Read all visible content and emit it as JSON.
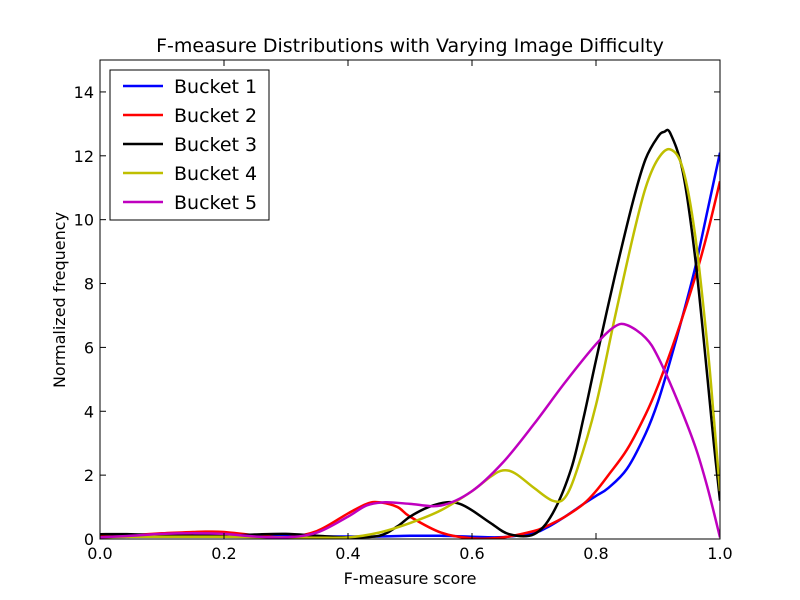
{
  "chart_data": {
    "type": "line",
    "title": "F-measure Distributions with Varying Image Difficulty",
    "xlabel": "F-measure score",
    "ylabel": "Normalized frequency",
    "xlim": [
      0.0,
      1.0
    ],
    "ylim": [
      0,
      15
    ],
    "xticks": [
      0.0,
      0.2,
      0.4,
      0.6,
      0.8,
      1.0
    ],
    "xtick_labels": [
      "0.0",
      "0.2",
      "0.4",
      "0.6",
      "0.8",
      "1.0"
    ],
    "yticks": [
      0,
      2,
      4,
      6,
      8,
      10,
      12,
      14
    ],
    "ytick_labels": [
      "0",
      "2",
      "4",
      "6",
      "8",
      "10",
      "12",
      "14"
    ],
    "grid": false,
    "legend_position": "top-left",
    "series": [
      {
        "name": "Bucket 1",
        "color": "#0000ff",
        "points": [
          [
            0.0,
            0.1
          ],
          [
            0.05,
            0.12
          ],
          [
            0.1,
            0.12
          ],
          [
            0.15,
            0.12
          ],
          [
            0.2,
            0.11
          ],
          [
            0.25,
            0.1
          ],
          [
            0.3,
            0.09
          ],
          [
            0.35,
            0.08
          ],
          [
            0.4,
            0.08
          ],
          [
            0.45,
            0.08
          ],
          [
            0.5,
            0.1
          ],
          [
            0.55,
            0.1
          ],
          [
            0.6,
            0.07
          ],
          [
            0.65,
            0.06
          ],
          [
            0.7,
            0.2
          ],
          [
            0.72,
            0.35
          ],
          [
            0.75,
            0.7
          ],
          [
            0.78,
            1.1
          ],
          [
            0.8,
            1.35
          ],
          [
            0.82,
            1.6
          ],
          [
            0.85,
            2.2
          ],
          [
            0.88,
            3.3
          ],
          [
            0.9,
            4.3
          ],
          [
            0.92,
            5.6
          ],
          [
            0.94,
            7.0
          ],
          [
            0.96,
            8.5
          ],
          [
            0.98,
            10.3
          ],
          [
            1.0,
            12.1
          ]
        ]
      },
      {
        "name": "Bucket 2",
        "color": "#ff0000",
        "points": [
          [
            0.0,
            0.1
          ],
          [
            0.05,
            0.12
          ],
          [
            0.1,
            0.18
          ],
          [
            0.15,
            0.22
          ],
          [
            0.17,
            0.23
          ],
          [
            0.2,
            0.22
          ],
          [
            0.25,
            0.12
          ],
          [
            0.3,
            0.05
          ],
          [
            0.35,
            0.25
          ],
          [
            0.4,
            0.8
          ],
          [
            0.43,
            1.1
          ],
          [
            0.45,
            1.15
          ],
          [
            0.48,
            1.0
          ],
          [
            0.5,
            0.7
          ],
          [
            0.55,
            0.2
          ],
          [
            0.6,
            0.02
          ],
          [
            0.65,
            0.05
          ],
          [
            0.7,
            0.25
          ],
          [
            0.72,
            0.4
          ],
          [
            0.75,
            0.7
          ],
          [
            0.78,
            1.1
          ],
          [
            0.8,
            1.5
          ],
          [
            0.82,
            2.0
          ],
          [
            0.85,
            2.8
          ],
          [
            0.88,
            3.9
          ],
          [
            0.9,
            4.8
          ],
          [
            0.93,
            6.4
          ],
          [
            0.96,
            8.2
          ],
          [
            0.98,
            9.6
          ],
          [
            1.0,
            11.2
          ]
        ]
      },
      {
        "name": "Bucket 3",
        "color": "#000000",
        "points": [
          [
            0.0,
            0.15
          ],
          [
            0.05,
            0.15
          ],
          [
            0.1,
            0.12
          ],
          [
            0.15,
            0.1
          ],
          [
            0.2,
            0.1
          ],
          [
            0.25,
            0.14
          ],
          [
            0.3,
            0.16
          ],
          [
            0.35,
            0.1
          ],
          [
            0.4,
            0.05
          ],
          [
            0.45,
            0.1
          ],
          [
            0.48,
            0.4
          ],
          [
            0.5,
            0.7
          ],
          [
            0.53,
            1.0
          ],
          [
            0.56,
            1.15
          ],
          [
            0.58,
            1.1
          ],
          [
            0.6,
            0.9
          ],
          [
            0.63,
            0.5
          ],
          [
            0.66,
            0.15
          ],
          [
            0.7,
            0.15
          ],
          [
            0.73,
            0.8
          ],
          [
            0.76,
            2.2
          ],
          [
            0.78,
            3.8
          ],
          [
            0.8,
            5.6
          ],
          [
            0.83,
            8.2
          ],
          [
            0.86,
            10.6
          ],
          [
            0.88,
            11.9
          ],
          [
            0.9,
            12.6
          ],
          [
            0.91,
            12.75
          ],
          [
            0.92,
            12.7
          ],
          [
            0.94,
            11.5
          ],
          [
            0.96,
            8.8
          ],
          [
            0.98,
            5.0
          ],
          [
            0.99,
            3.0
          ],
          [
            1.0,
            1.2
          ]
        ]
      },
      {
        "name": "Bucket 4",
        "color": "#bfbf00",
        "points": [
          [
            0.0,
            0.05
          ],
          [
            0.05,
            0.07
          ],
          [
            0.1,
            0.07
          ],
          [
            0.15,
            0.07
          ],
          [
            0.2,
            0.07
          ],
          [
            0.25,
            0.06
          ],
          [
            0.3,
            0.05
          ],
          [
            0.35,
            0.04
          ],
          [
            0.4,
            0.05
          ],
          [
            0.45,
            0.2
          ],
          [
            0.5,
            0.5
          ],
          [
            0.55,
            0.9
          ],
          [
            0.6,
            1.5
          ],
          [
            0.63,
            1.95
          ],
          [
            0.65,
            2.15
          ],
          [
            0.67,
            2.05
          ],
          [
            0.7,
            1.6
          ],
          [
            0.73,
            1.2
          ],
          [
            0.75,
            1.3
          ],
          [
            0.77,
            2.2
          ],
          [
            0.8,
            4.2
          ],
          [
            0.83,
            6.9
          ],
          [
            0.86,
            9.5
          ],
          [
            0.88,
            11.0
          ],
          [
            0.9,
            11.9
          ],
          [
            0.92,
            12.2
          ],
          [
            0.94,
            11.6
          ],
          [
            0.96,
            9.5
          ],
          [
            0.98,
            6.0
          ],
          [
            0.99,
            3.8
          ],
          [
            1.0,
            1.5
          ]
        ]
      },
      {
        "name": "Bucket 5",
        "color": "#bf00bf",
        "points": [
          [
            0.0,
            0.05
          ],
          [
            0.05,
            0.1
          ],
          [
            0.1,
            0.16
          ],
          [
            0.15,
            0.18
          ],
          [
            0.2,
            0.16
          ],
          [
            0.25,
            0.08
          ],
          [
            0.3,
            0.05
          ],
          [
            0.35,
            0.2
          ],
          [
            0.4,
            0.7
          ],
          [
            0.43,
            1.05
          ],
          [
            0.46,
            1.15
          ],
          [
            0.5,
            1.1
          ],
          [
            0.55,
            1.05
          ],
          [
            0.6,
            1.5
          ],
          [
            0.65,
            2.4
          ],
          [
            0.7,
            3.6
          ],
          [
            0.75,
            4.9
          ],
          [
            0.8,
            6.1
          ],
          [
            0.83,
            6.65
          ],
          [
            0.85,
            6.7
          ],
          [
            0.88,
            6.3
          ],
          [
            0.9,
            5.7
          ],
          [
            0.93,
            4.4
          ],
          [
            0.96,
            2.9
          ],
          [
            0.98,
            1.6
          ],
          [
            1.0,
            0.05
          ]
        ]
      }
    ]
  }
}
